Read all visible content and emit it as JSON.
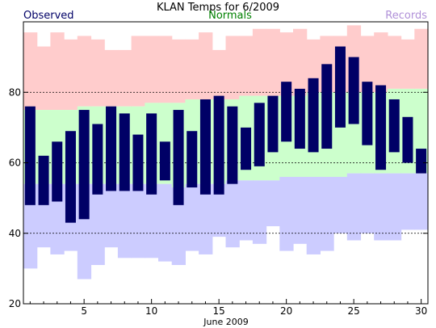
{
  "chart_data": {
    "type": "bar",
    "title": "KLAN Temps for 6/2009",
    "xlabel": "June 2009",
    "ylabel": "",
    "legend": [
      {
        "name": "Observed",
        "color": "#000066",
        "placement": "top-left"
      },
      {
        "name": "Normals",
        "color": "#008000",
        "placement": "top-center"
      },
      {
        "name": "Records",
        "color": "#b090d8",
        "placement": "top-right"
      }
    ],
    "colors": {
      "observed": "#000066",
      "normal_band": "#ccffcc",
      "record_high_band": "#ffcccc",
      "record_low_band": "#ccccff",
      "gridline": "#000000"
    },
    "xlim": [
      1,
      30
    ],
    "ylim": [
      20,
      100
    ],
    "x_ticks": [
      5,
      10,
      15,
      20,
      25,
      30
    ],
    "y_ticks": [
      20,
      40,
      60,
      80
    ],
    "grid_y": [
      40,
      60,
      80
    ],
    "days": [
      1,
      2,
      3,
      4,
      5,
      6,
      7,
      8,
      9,
      10,
      11,
      12,
      13,
      14,
      15,
      16,
      17,
      18,
      19,
      20,
      21,
      22,
      23,
      24,
      25,
      26,
      27,
      28,
      29,
      30
    ],
    "observed_high": [
      76,
      62,
      66,
      69,
      75,
      71,
      76,
      74,
      68,
      74,
      66,
      75,
      69,
      78,
      79,
      76,
      70,
      77,
      79,
      83,
      81,
      84,
      88,
      93,
      90,
      83,
      82,
      78,
      73,
      64
    ],
    "observed_low": [
      48,
      48,
      49,
      43,
      44,
      51,
      52,
      52,
      52,
      51,
      55,
      48,
      53,
      51,
      51,
      54,
      58,
      59,
      63,
      66,
      64,
      63,
      64,
      70,
      71,
      65,
      58,
      63,
      60,
      57
    ],
    "normal_high": [
      75,
      75,
      75,
      75,
      76,
      76,
      76,
      76,
      76,
      77,
      77,
      77,
      78,
      78,
      78,
      78,
      79,
      79,
      79,
      79,
      79,
      80,
      80,
      80,
      80,
      80,
      80,
      81,
      81,
      81
    ],
    "normal_low": [
      54,
      54,
      54,
      54,
      54,
      54,
      54,
      54,
      54,
      54,
      54,
      53,
      54,
      54,
      54,
      55,
      55,
      55,
      55,
      56,
      56,
      56,
      56,
      56,
      57,
      57,
      57,
      57,
      57,
      57
    ],
    "record_high": [
      97,
      93,
      97,
      95,
      96,
      95,
      92,
      92,
      96,
      96,
      96,
      95,
      95,
      97,
      92,
      96,
      96,
      98,
      98,
      97,
      98,
      95,
      96,
      96,
      99,
      96,
      97,
      96,
      95,
      98
    ],
    "record_low": [
      30,
      36,
      34,
      35,
      27,
      31,
      36,
      33,
      33,
      33,
      32,
      31,
      35,
      34,
      39,
      36,
      38,
      37,
      42,
      35,
      37,
      34,
      35,
      40,
      38,
      40,
      38,
      38,
      41,
      41
    ]
  }
}
